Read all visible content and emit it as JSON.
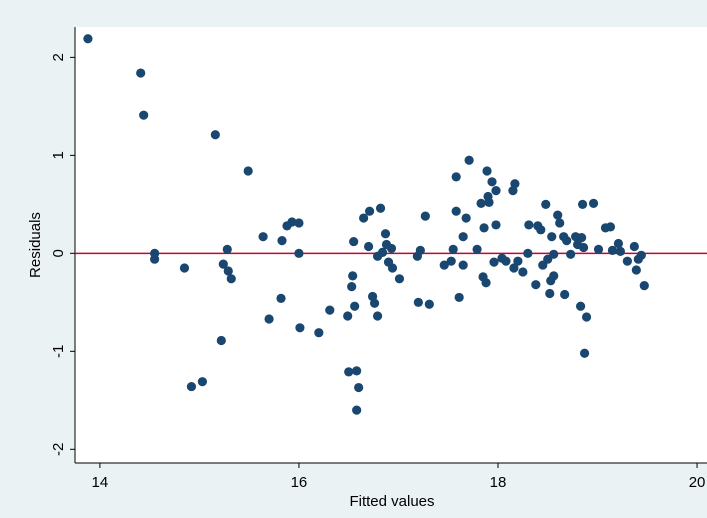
{
  "chart_data": {
    "type": "scatter",
    "xlabel": "Fitted values",
    "ylabel": "Residuals",
    "color": "#1a476f",
    "hline": 0,
    "hline_color": "#c10534",
    "xlim": [
      13.75,
      20.1
    ],
    "ylim": [
      -2.14,
      2.31
    ],
    "xticks": [
      14,
      16,
      18,
      20
    ],
    "yticks": [
      -2,
      -1,
      0,
      1,
      2
    ],
    "x": [
      13.88,
      14.41,
      14.44,
      14.55,
      14.55,
      14.85,
      14.92,
      15.03,
      15.16,
      15.22,
      15.24,
      15.28,
      15.29,
      15.32,
      15.49,
      15.64,
      15.7,
      15.82,
      15.83,
      15.88,
      15.93,
      16.0,
      16.0,
      16.01,
      16.2,
      16.31,
      16.49,
      16.5,
      16.53,
      16.54,
      16.55,
      16.56,
      16.58,
      16.6,
      16.58,
      16.65,
      16.7,
      16.71,
      16.74,
      16.76,
      16.79,
      16.79,
      16.82,
      16.84,
      16.87,
      16.88,
      16.9,
      16.93,
      16.94,
      17.01,
      17.19,
      17.22,
      17.2,
      17.27,
      17.31,
      17.46,
      17.53,
      17.55,
      17.58,
      17.58,
      17.61,
      17.65,
      17.65,
      17.68,
      17.71,
      17.79,
      17.83,
      17.85,
      17.86,
      17.88,
      17.89,
      17.9,
      17.91,
      17.94,
      17.96,
      17.98,
      17.98,
      18.04,
      18.08,
      18.15,
      18.16,
      18.17,
      18.2,
      18.25,
      18.3,
      18.31,
      18.38,
      18.4,
      18.43,
      18.45,
      18.48,
      18.5,
      18.52,
      18.53,
      18.54,
      18.56,
      18.56,
      18.6,
      18.62,
      18.66,
      18.67,
      18.69,
      18.73,
      18.78,
      18.8,
      18.83,
      18.84,
      18.85,
      18.86,
      18.87,
      18.89,
      18.96,
      19.01,
      19.08,
      19.13,
      19.15,
      19.21,
      19.23,
      19.3,
      19.37,
      19.39,
      19.41,
      19.44,
      19.47
    ],
    "y": [
      2.19,
      1.84,
      1.41,
      0.0,
      -0.06,
      -0.15,
      -1.36,
      -1.31,
      1.21,
      -0.89,
      -0.11,
      0.04,
      -0.18,
      -0.26,
      0.84,
      0.17,
      -0.67,
      -0.46,
      0.13,
      0.28,
      0.32,
      0.31,
      0.0,
      -0.76,
      -0.81,
      -0.58,
      -0.64,
      -1.21,
      -0.34,
      -0.23,
      0.12,
      -0.54,
      -1.2,
      -1.37,
      -1.6,
      0.36,
      0.07,
      0.43,
      -0.44,
      -0.51,
      -0.64,
      -0.03,
      0.46,
      0.01,
      0.2,
      0.09,
      -0.09,
      0.05,
      -0.15,
      -0.26,
      -0.03,
      0.03,
      -0.5,
      0.38,
      -0.52,
      -0.12,
      -0.08,
      0.04,
      0.43,
      0.78,
      -0.45,
      0.17,
      -0.12,
      0.36,
      0.95,
      0.04,
      0.51,
      -0.24,
      0.26,
      -0.3,
      0.84,
      0.58,
      0.52,
      0.73,
      -0.09,
      0.64,
      0.29,
      -0.05,
      -0.08,
      0.64,
      -0.15,
      0.71,
      -0.08,
      -0.19,
      0.0,
      0.29,
      -0.32,
      0.28,
      0.24,
      -0.12,
      0.5,
      -0.06,
      -0.41,
      -0.28,
      0.17,
      -0.23,
      -0.01,
      0.39,
      0.31,
      0.17,
      -0.42,
      0.13,
      -0.01,
      0.17,
      0.09,
      -0.54,
      0.16,
      0.5,
      0.06,
      -1.02,
      -0.65,
      0.51,
      0.04,
      0.26,
      0.27,
      0.03,
      0.1,
      0.02,
      -0.08,
      0.07,
      -0.17,
      -0.06,
      -0.02,
      -0.33
    ]
  }
}
